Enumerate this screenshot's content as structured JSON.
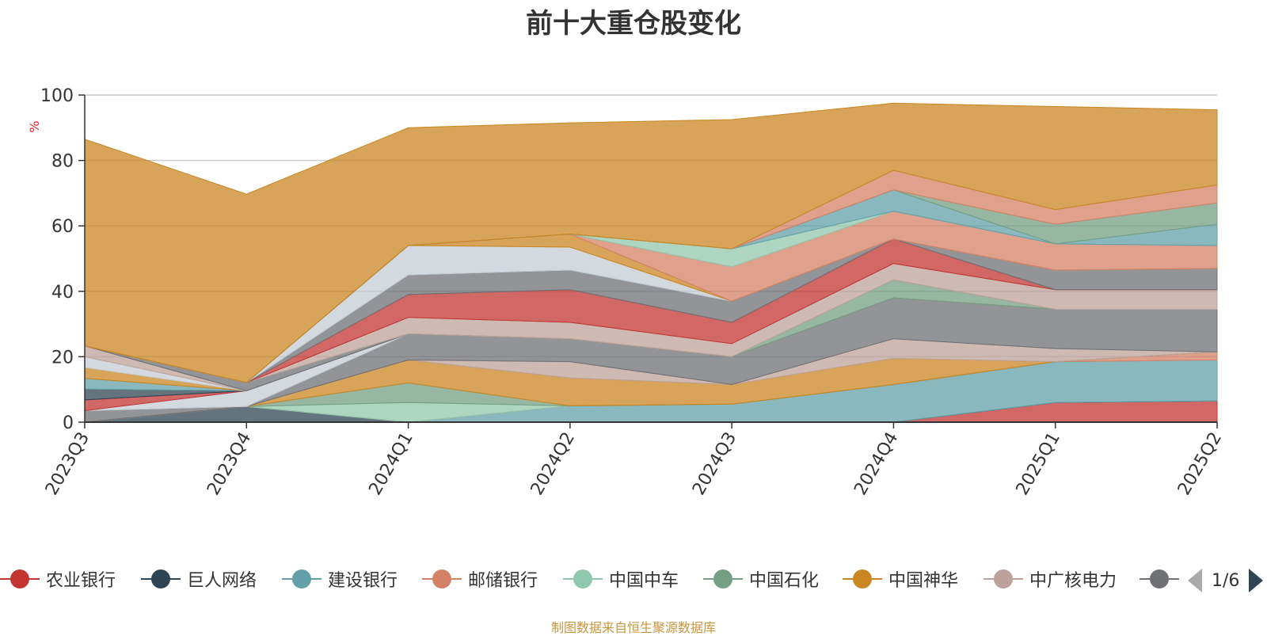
{
  "chart_data": {
    "type": "area",
    "title": "前十大重仓股变化",
    "ylabel": "%",
    "ylim": [
      0,
      100
    ],
    "y_ticks": [
      0,
      20,
      40,
      60,
      80,
      100
    ],
    "categories": [
      "2023Q3",
      "2023Q4",
      "2024Q1",
      "2024Q2",
      "2024Q3",
      "2024Q4",
      "2025Q1",
      "2025Q2"
    ],
    "grid": true,
    "stacked": true,
    "legend_position": "bottom",
    "series": [
      {
        "name": "农业银行",
        "color": "#c23531",
        "values": [
          0,
          0,
          0,
          0,
          0,
          0,
          6.0,
          6.5
        ]
      },
      {
        "name": "巨人网络",
        "color": "#2f4554",
        "values": [
          0,
          4.8,
          0,
          0,
          0,
          0,
          0,
          0
        ]
      },
      {
        "name": "建设银行",
        "color": "#61a0a8",
        "values": [
          0,
          0,
          0,
          5.0,
          5.5,
          11.5,
          12.5,
          12.5
        ]
      },
      {
        "name": "邮储银行",
        "color": "#d48265",
        "values": [
          0,
          0,
          0,
          0,
          0,
          0,
          0,
          2.5
        ]
      },
      {
        "name": "中国中车",
        "color": "#91c7ae",
        "values": [
          0,
          0,
          6.0,
          0,
          0,
          0,
          0,
          0
        ]
      },
      {
        "name": "中国石化",
        "color": "#749f83",
        "values": [
          0,
          0,
          6.0,
          0,
          0,
          0,
          0,
          0
        ]
      },
      {
        "name": "中国神华",
        "color": "#ca8622",
        "values": [
          0,
          0,
          7.0,
          8.5,
          6.0,
          8.0,
          0,
          0
        ]
      },
      {
        "name": "中广核电力",
        "color": "#bda29a",
        "values": [
          0,
          0,
          0,
          5.0,
          0,
          6.0,
          4.0,
          0
        ]
      },
      {
        "name": "",
        "color": "#6e7074",
        "values": [
          3.5,
          0,
          8.0,
          7.0,
          8.5,
          12.5,
          12.0,
          13.0
        ]
      },
      {
        "name": "",
        "color": "#c4ccd3",
        "values": [
          0,
          4.8,
          0,
          0,
          0,
          0,
          0,
          0
        ]
      },
      {
        "name": "",
        "color": "#c23531",
        "values": [
          3.3,
          0,
          0,
          0,
          0,
          0,
          0,
          0
        ]
      },
      {
        "name": "",
        "color": "#2f4554",
        "values": [
          3.3,
          0,
          0,
          0,
          0,
          0,
          0,
          0
        ]
      },
      {
        "name": "",
        "color": "#61a0a8",
        "values": [
          3.3,
          0,
          0,
          0,
          0,
          0,
          0,
          0
        ]
      },
      {
        "name": "",
        "color": "#ca8622",
        "values": [
          3.3,
          0,
          0,
          0,
          0,
          0,
          0,
          0
        ]
      },
      {
        "name": "",
        "color": "#c4ccd3",
        "values": [
          3.3,
          0,
          0,
          0,
          0,
          0,
          0,
          0
        ]
      },
      {
        "name": "",
        "color": "#bda29a",
        "values": [
          3.3,
          0,
          0,
          0,
          0,
          0,
          0,
          0
        ]
      },
      {
        "name": "",
        "color": "#6e7074",
        "values": [
          0,
          2.5,
          0,
          0,
          0,
          0,
          0,
          0
        ]
      },
      {
        "name": "",
        "color": "#749f83",
        "values": [
          0,
          0,
          0,
          0,
          0,
          5.5,
          0,
          0
        ]
      },
      {
        "name": "",
        "color": "#bda29a",
        "values": [
          0,
          0,
          5.0,
          5.0,
          4.0,
          5.0,
          6.0,
          6.0
        ]
      },
      {
        "name": "",
        "color": "#c23531",
        "values": [
          0,
          0,
          7.0,
          10.0,
          6.5,
          7.5,
          0,
          0
        ]
      },
      {
        "name": "",
        "color": "#6e7074",
        "values": [
          0,
          0,
          6.0,
          6.0,
          6.5,
          0,
          6.0,
          6.5
        ]
      },
      {
        "name": "",
        "color": "#c4ccd3",
        "values": [
          0,
          0,
          9.0,
          7.0,
          0,
          0,
          0,
          0
        ]
      },
      {
        "name": "",
        "color": "#ca8622",
        "values": [
          0,
          0,
          0,
          4.0,
          0,
          0,
          0,
          0
        ]
      },
      {
        "name": "",
        "color": "#d48265",
        "values": [
          0,
          0,
          0,
          0,
          10.5,
          8.5,
          8.0,
          7.0
        ]
      },
      {
        "name": "",
        "color": "#91c7ae",
        "values": [
          0,
          0,
          0,
          0,
          5.5,
          0,
          0,
          0
        ]
      },
      {
        "name": "",
        "color": "#61a0a8",
        "values": [
          0,
          0,
          0,
          0,
          0,
          6.5,
          0,
          6.5
        ]
      },
      {
        "name": "",
        "color": "#749f83",
        "values": [
          0,
          0,
          0,
          0,
          0,
          0,
          6.0,
          6.5
        ]
      },
      {
        "name": "",
        "color": "#d48265",
        "values": [
          0,
          0,
          0,
          0,
          0,
          6.0,
          4.5,
          5.5
        ]
      },
      {
        "name": "",
        "color": "#ca8622",
        "values": [
          63.2,
          57.6,
          36.0,
          34.0,
          39.5,
          20.5,
          31.5,
          23.0
        ]
      }
    ]
  },
  "legend": {
    "items": [
      {
        "label": "农业银行",
        "color": "#c23531"
      },
      {
        "label": "巨人网络",
        "color": "#2f4554"
      },
      {
        "label": "建设银行",
        "color": "#61a0a8"
      },
      {
        "label": "邮储银行",
        "color": "#d48265"
      },
      {
        "label": "中国中车",
        "color": "#91c7ae"
      },
      {
        "label": "中国石化",
        "color": "#749f83"
      },
      {
        "label": "中国神华",
        "color": "#ca8622"
      },
      {
        "label": "中广核电力",
        "color": "#bda29a"
      },
      {
        "label": "",
        "color": "#6e7074"
      }
    ],
    "page_indicator": "1/6"
  },
  "footnote": "制图数据来自恒生聚源数据库"
}
